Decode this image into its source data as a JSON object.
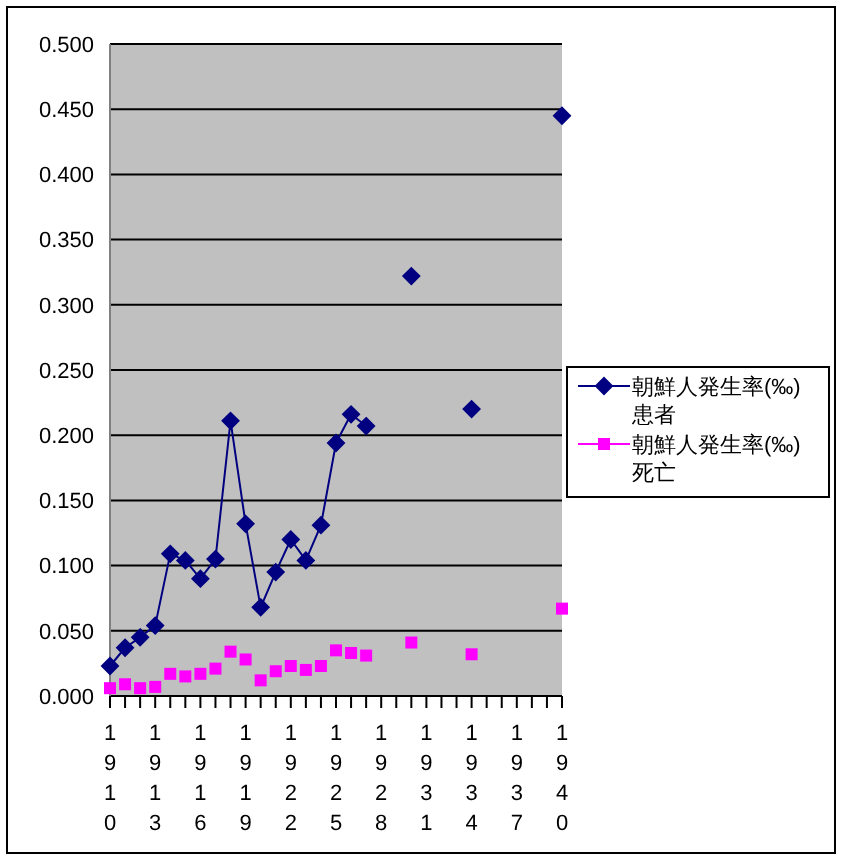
{
  "chart_data": {
    "type": "line",
    "categories": [
      "1910",
      null,
      null,
      "1913",
      null,
      null,
      "1916",
      null,
      null,
      "1919",
      null,
      null,
      "1922",
      null,
      null,
      "1925",
      null,
      null,
      "1928",
      null,
      null,
      "1931",
      null,
      null,
      "1934",
      null,
      null,
      "1937",
      null,
      null,
      "1940"
    ],
    "series": [
      {
        "name": "朝鮮人発生率(‰) 患者",
        "color": "#000080",
        "marker": "diamond",
        "values": [
          0.023,
          0.037,
          0.045,
          0.054,
          0.109,
          0.104,
          0.09,
          0.105,
          0.211,
          0.132,
          0.068,
          0.095,
          0.12,
          0.104,
          0.131,
          0.194,
          0.216,
          0.207,
          null,
          null,
          0.322,
          null,
          null,
          null,
          0.22,
          null,
          null,
          null,
          null,
          null,
          0.445
        ]
      },
      {
        "name": "朝鮮人発生率(‰) 死亡",
        "color": "#ff00ff",
        "type": "scatter",
        "marker": "square",
        "values": [
          0.006,
          0.009,
          0.006,
          0.007,
          0.017,
          0.015,
          0.017,
          0.021,
          0.034,
          0.028,
          0.012,
          0.019,
          0.023,
          0.02,
          0.023,
          0.035,
          0.033,
          0.031,
          null,
          null,
          0.041,
          null,
          null,
          null,
          0.032,
          null,
          null,
          null,
          null,
          null,
          0.067
        ]
      }
    ],
    "ylim": [
      0,
      0.5
    ],
    "yticks": [
      {
        "value": 0,
        "label": "0.000"
      },
      {
        "value": 0.05,
        "label": "0.050"
      },
      {
        "value": 0.1,
        "label": "0.100"
      },
      {
        "value": 0.15,
        "label": "0.150"
      },
      {
        "value": 0.2,
        "label": "0.200"
      },
      {
        "value": 0.25,
        "label": "0.250"
      },
      {
        "value": 0.3,
        "label": "0.300"
      },
      {
        "value": 0.35,
        "label": "0.350"
      },
      {
        "value": 0.4,
        "label": "0.400"
      },
      {
        "value": 0.45,
        "label": "0.450"
      },
      {
        "value": 0.5,
        "label": "0.500"
      }
    ],
    "grid": "y",
    "legend": "right"
  }
}
